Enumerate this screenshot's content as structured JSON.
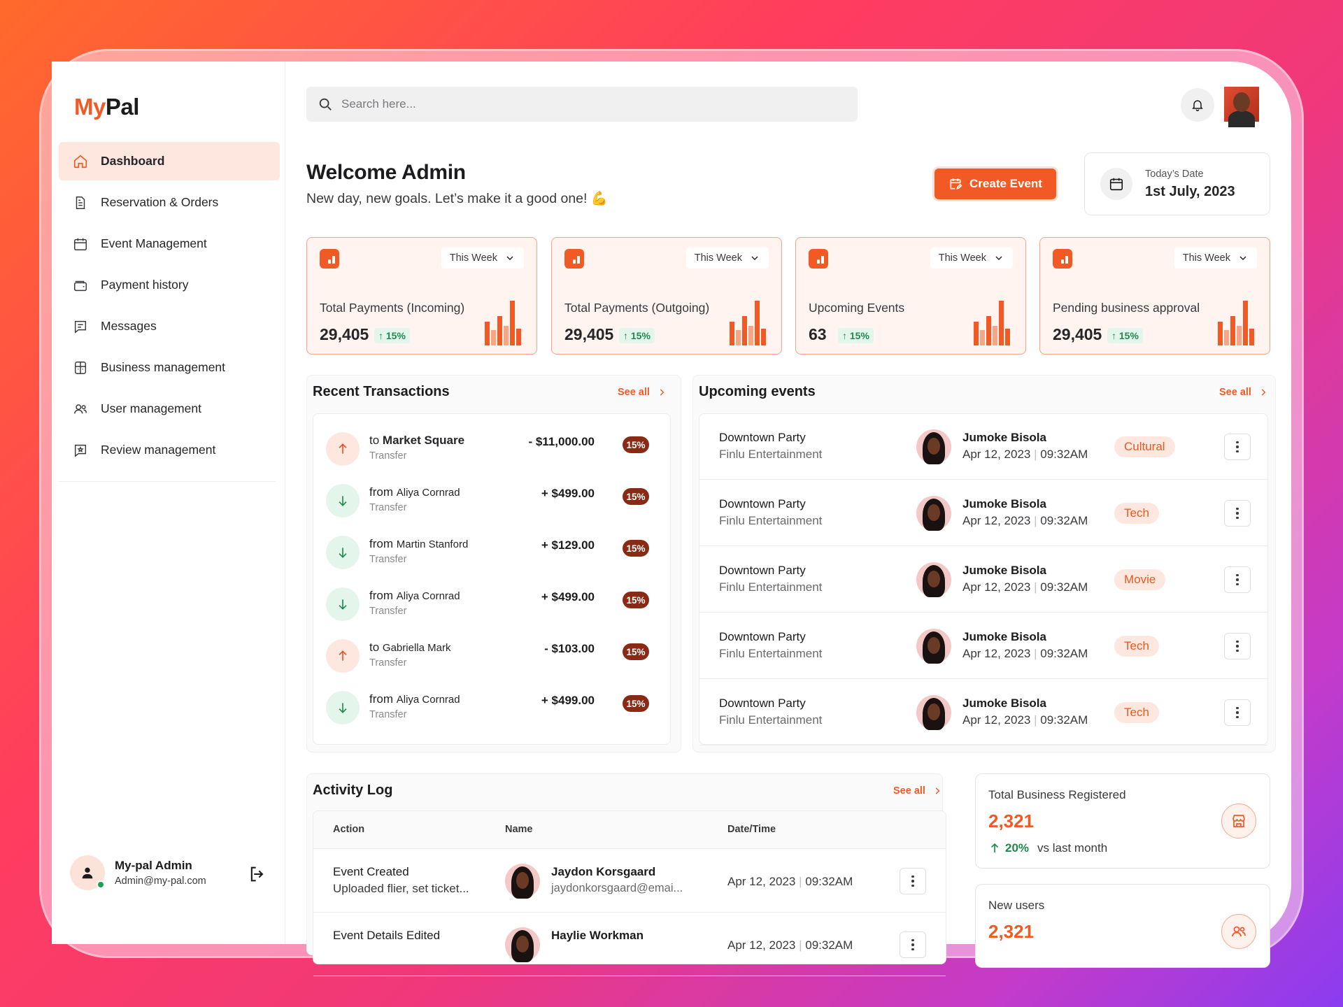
{
  "app": {
    "logo_my": "My",
    "logo_pal": "Pal"
  },
  "sidebar": {
    "items": [
      {
        "label": "Dashboard",
        "icon": "home-icon"
      },
      {
        "label": "Reservation & Orders",
        "icon": "document-icon"
      },
      {
        "label": "Event Management",
        "icon": "calendar-icon"
      },
      {
        "label": "Payment history",
        "icon": "wallet-icon"
      },
      {
        "label": "Messages",
        "icon": "message-icon"
      },
      {
        "label": "Business management",
        "icon": "building-icon"
      },
      {
        "label": "User management",
        "icon": "users-icon"
      },
      {
        "label": "Review management",
        "icon": "review-icon"
      }
    ],
    "profile": {
      "name": "My-pal Admin",
      "email": "Admin@my-pal.com"
    }
  },
  "search": {
    "placeholder": "Search here..."
  },
  "header": {
    "welcome": "Welcome Admin",
    "subtitle": "New day, new goals. Let’s make it a good one! 💪",
    "create_label": "Create Event",
    "date_label": "Today’s Date",
    "date_value": "1st July, 2023"
  },
  "stats": [
    {
      "range": "This Week",
      "label": "Total Payments (Incoming)",
      "value": "29,405",
      "trend": "15%"
    },
    {
      "range": "This Week",
      "label": "Total Payments (Outgoing)",
      "value": "29,405",
      "trend": "15%"
    },
    {
      "range": "This Week",
      "label": "Upcoming Events",
      "value": "63",
      "trend": "15%"
    },
    {
      "range": "This Week",
      "label": "Pending business approval",
      "value": "29,405",
      "trend": "15%"
    }
  ],
  "transactions": {
    "title": "Recent Transactions",
    "see_all": "See all",
    "rows": [
      {
        "dir": "up",
        "prefix": "to",
        "party": "Market Square",
        "type": "Transfer",
        "amount": "- $11,000.00",
        "pct": "15%"
      },
      {
        "dir": "down",
        "prefix": "from",
        "party": "Aliya Cornrad",
        "type": "Transfer",
        "amount": "+ $499.00",
        "pct": "15%"
      },
      {
        "dir": "down",
        "prefix": "from",
        "party": "Martin Stanford",
        "type": "Transfer",
        "amount": "+ $129.00",
        "pct": "15%"
      },
      {
        "dir": "down",
        "prefix": "from",
        "party": "Aliya Cornrad",
        "type": "Transfer",
        "amount": "+ $499.00",
        "pct": "15%"
      },
      {
        "dir": "up",
        "prefix": "to",
        "party": "Gabriella Mark",
        "type": "Transfer",
        "amount": "- $103.00",
        "pct": "15%"
      },
      {
        "dir": "down",
        "prefix": "from",
        "party": "Aliya Cornrad",
        "type": "Transfer",
        "amount": "+ $499.00",
        "pct": "15%"
      }
    ]
  },
  "events": {
    "title": "Upcoming events",
    "see_all": "See all",
    "rows": [
      {
        "name": "Downtown Party",
        "org": "Finlu Entertainment",
        "host": "Jumoke Bisola",
        "date": "Apr 12, 2023",
        "time": "09:32AM",
        "tag": "Cultural"
      },
      {
        "name": "Downtown Party",
        "org": "Finlu Entertainment",
        "host": "Jumoke Bisola",
        "date": "Apr 12, 2023",
        "time": "09:32AM",
        "tag": "Tech"
      },
      {
        "name": "Downtown Party",
        "org": "Finlu Entertainment",
        "host": "Jumoke Bisola",
        "date": "Apr 12, 2023",
        "time": "09:32AM",
        "tag": "Movie"
      },
      {
        "name": "Downtown Party",
        "org": "Finlu Entertainment",
        "host": "Jumoke Bisola",
        "date": "Apr 12, 2023",
        "time": "09:32AM",
        "tag": "Tech"
      },
      {
        "name": "Downtown Party",
        "org": "Finlu Entertainment",
        "host": "Jumoke Bisola",
        "date": "Apr 12, 2023",
        "time": "09:32AM",
        "tag": "Tech"
      }
    ]
  },
  "activity": {
    "title": "Activity Log",
    "see_all": "See all",
    "columns": [
      "Action",
      "Name",
      "Date/Time"
    ],
    "rows": [
      {
        "action": "Event Created",
        "detail": "Uploaded flier, set ticket...",
        "name": "Jaydon Korsgaard",
        "email": "jaydonkorsgaard@emai...",
        "date": "Apr 12, 2023",
        "time": "09:32AM"
      },
      {
        "action": "Event Details Edited",
        "detail": "",
        "name": "Haylie Workman",
        "email": "",
        "date": "Apr 12, 2023",
        "time": "09:32AM"
      }
    ]
  },
  "business": {
    "label": "Total Business Registered",
    "value": "2,321",
    "trend": "20%",
    "trend_note": "vs last month"
  },
  "new_users": {
    "label": "New users",
    "value": "2,321"
  },
  "colors": {
    "accent": "#f15a24",
    "positive": "#1f8a4c",
    "badge": "#8a2a14"
  }
}
